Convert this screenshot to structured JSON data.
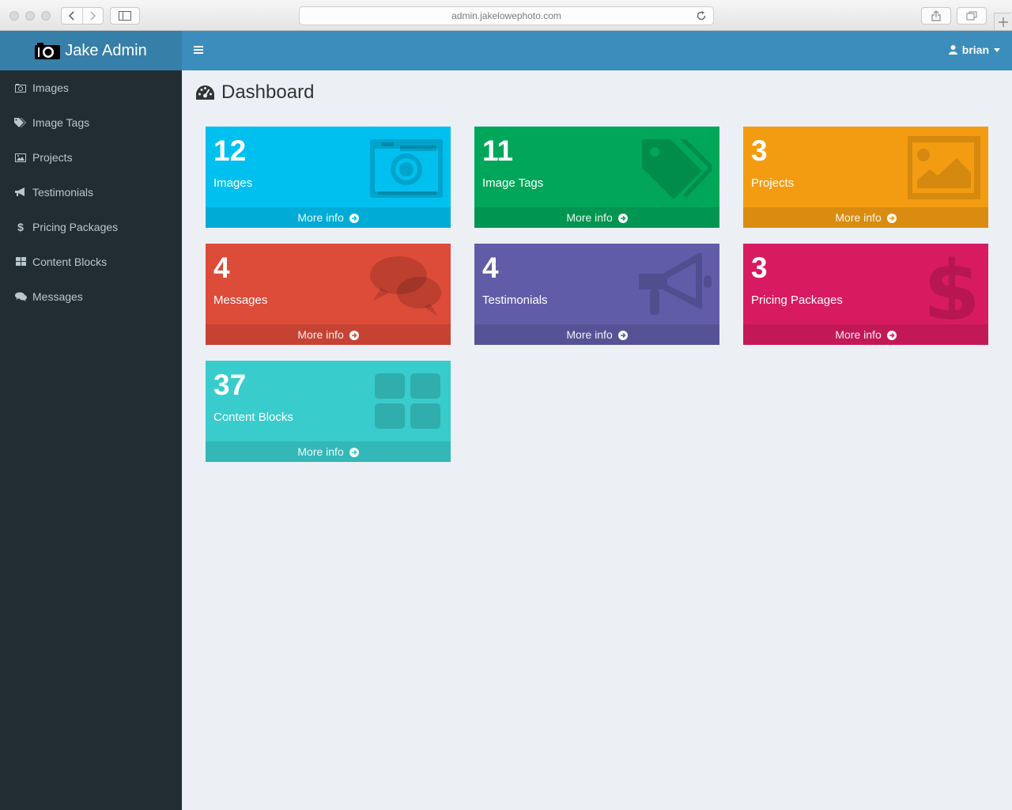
{
  "browser": {
    "url": "admin.jakelowephoto.com"
  },
  "app": {
    "brand": "Jake Admin",
    "header_color": "#3c8dbc",
    "sidebar_color": "#222d32"
  },
  "user_menu": {
    "username": "brian",
    "icon": "user-icon"
  },
  "sidebar": {
    "items": [
      {
        "label": "Images",
        "icon": "camera-icon"
      },
      {
        "label": "Image Tags",
        "icon": "tags-icon"
      },
      {
        "label": "Projects",
        "icon": "picture-icon"
      },
      {
        "label": "Testimonials",
        "icon": "bullhorn-icon"
      },
      {
        "label": "Pricing Packages",
        "icon": "dollar-icon"
      },
      {
        "label": "Content Blocks",
        "icon": "grid-icon"
      },
      {
        "label": "Messages",
        "icon": "comments-icon"
      }
    ]
  },
  "page": {
    "title": "Dashboard",
    "icon": "dashboard-icon"
  },
  "boxes": [
    {
      "count": "12",
      "label": "Images",
      "more": "More info",
      "color": "#00c0ef",
      "icon": "camera-icon"
    },
    {
      "count": "11",
      "label": "Image Tags",
      "more": "More info",
      "color": "#00a65a",
      "icon": "tags-icon"
    },
    {
      "count": "3",
      "label": "Projects",
      "more": "More info",
      "color": "#f39c12",
      "icon": "picture-icon"
    },
    {
      "count": "4",
      "label": "Messages",
      "more": "More info",
      "color": "#dd4b39",
      "icon": "comments-icon"
    },
    {
      "count": "4",
      "label": "Testimonials",
      "more": "More info",
      "color": "#605ca8",
      "icon": "bullhorn-icon"
    },
    {
      "count": "3",
      "label": "Pricing Packages",
      "more": "More info",
      "color": "#d81b60",
      "icon": "dollar-icon"
    },
    {
      "count": "37",
      "label": "Content Blocks",
      "more": "More info",
      "color": "#39cccc",
      "icon": "grid-icon"
    }
  ]
}
